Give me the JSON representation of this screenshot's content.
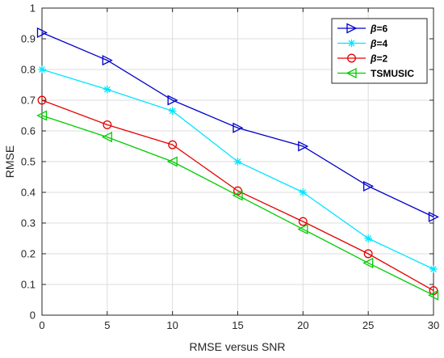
{
  "chart_data": {
    "type": "line",
    "title": "",
    "xlabel": "RMSE versus SNR",
    "ylabel": "RMSE",
    "xlim": [
      0,
      30
    ],
    "ylim": [
      0,
      1
    ],
    "xticks": [
      0,
      5,
      10,
      15,
      20,
      25,
      30
    ],
    "yticks": [
      0,
      0.1,
      0.2,
      0.3,
      0.4,
      0.5,
      0.6,
      0.7,
      0.8,
      0.9,
      1
    ],
    "ytick_labels": [
      "0",
      "0.1",
      "0.2",
      "0.3",
      "0.4",
      "0.5",
      "0.6",
      "0.7",
      "0.8",
      "0.9",
      "1"
    ],
    "grid": true,
    "legend_position": "top-right",
    "x": [
      0,
      5,
      10,
      15,
      20,
      25,
      30
    ],
    "series": [
      {
        "name": "β=6",
        "name_symbol": "β",
        "name_rest": "=6",
        "color": "#0000cc",
        "marker": "triangle-right",
        "values": [
          0.92,
          0.83,
          0.7,
          0.61,
          0.55,
          0.42,
          0.32
        ]
      },
      {
        "name": "β=4",
        "name_symbol": "β",
        "name_rest": "=4",
        "color": "#00e5ff",
        "marker": "asterisk",
        "values": [
          0.8,
          0.735,
          0.665,
          0.5,
          0.4,
          0.25,
          0.15
        ]
      },
      {
        "name": "β=2",
        "name_symbol": "β",
        "name_rest": "=2",
        "color": "#e60000",
        "marker": "circle",
        "values": [
          0.7,
          0.62,
          0.555,
          0.405,
          0.305,
          0.2,
          0.08
        ]
      },
      {
        "name": "TSMUSIC",
        "name_symbol": "",
        "name_rest": "TSMUSIC",
        "color": "#00cc00",
        "marker": "triangle-left",
        "values": [
          0.65,
          0.58,
          0.5,
          0.39,
          0.28,
          0.17,
          0.065
        ]
      }
    ]
  }
}
